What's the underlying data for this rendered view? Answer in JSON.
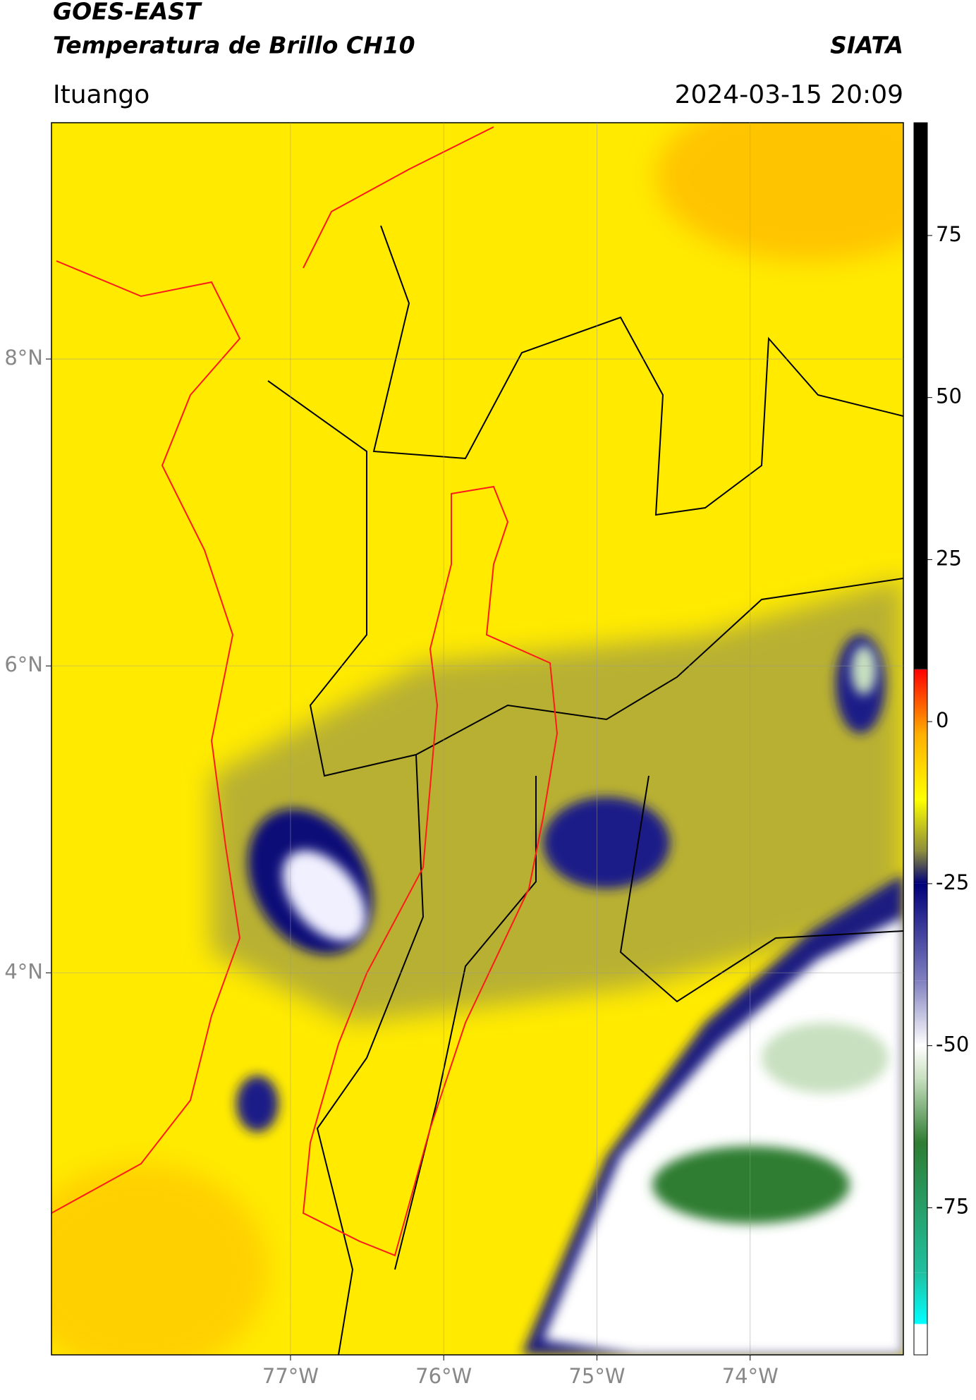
{
  "header": {
    "title": "GOES-EAST",
    "subtitle": "Temperatura de Brillo CH10",
    "source": "SIATA",
    "location": "Ituango",
    "datetime": "2024-03-15 20:09"
  },
  "map": {
    "xlim": [
      -78.56,
      -73.0
    ],
    "ylim": [
      1.51,
      9.54
    ],
    "xticks": [
      {
        "value": -77,
        "label": "77°W"
      },
      {
        "value": -76,
        "label": "76°W"
      },
      {
        "value": -75,
        "label": "75°W"
      },
      {
        "value": -74,
        "label": "74°W"
      }
    ],
    "yticks": [
      {
        "value": 4,
        "label": "4°N"
      },
      {
        "value": 6,
        "label": "6°N"
      },
      {
        "value": 8,
        "label": "8°N"
      }
    ],
    "grid": true
  },
  "colorbar": {
    "lim": [
      -97.7,
      92.4
    ],
    "ticks": [
      -75,
      -50,
      -25,
      0,
      25,
      50,
      75
    ],
    "stops": [
      {
        "value": -97.7,
        "color": "#ffffff"
      },
      {
        "value": -93,
        "color": "#ffffff"
      },
      {
        "value": -92.9,
        "color": "#00ffff"
      },
      {
        "value": -85,
        "color": "#20c0a0"
      },
      {
        "value": -65,
        "color": "#2e7d32"
      },
      {
        "value": -55,
        "color": "#c8e0c0"
      },
      {
        "value": -50,
        "color": "#ffffff"
      },
      {
        "value": -40,
        "color": "#8080c0"
      },
      {
        "value": -25,
        "color": "#00007a"
      },
      {
        "value": -20,
        "color": "#8c8c3c"
      },
      {
        "value": -12,
        "color": "#ffff00"
      },
      {
        "value": -2,
        "color": "#ffb000"
      },
      {
        "value": 8,
        "color": "#ff0000"
      },
      {
        "value": 8.1,
        "color": "#000000"
      },
      {
        "value": 92.4,
        "color": "#000000"
      }
    ]
  }
}
